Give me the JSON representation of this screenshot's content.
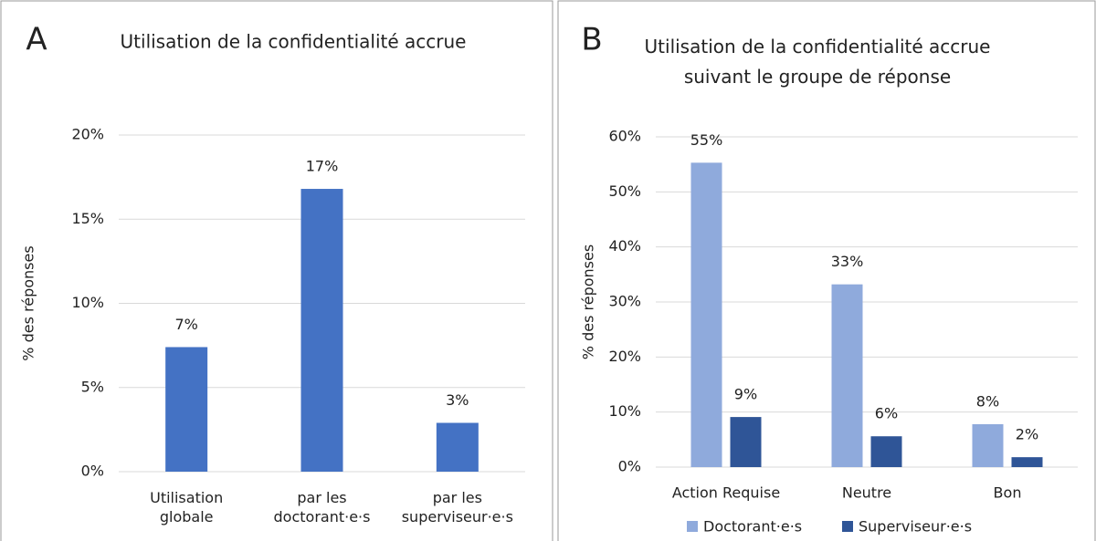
{
  "chart_data": [
    {
      "type": "bar",
      "panel": "A",
      "title": "Utilisation de la confidentialité accrue",
      "ylabel": "% des réponses",
      "categories": [
        "Utilisation globale",
        "par les doctorant·e·s",
        "par les superviseur·e·s"
      ],
      "values": [
        7.4,
        16.8,
        2.9
      ],
      "value_labels": [
        "7%",
        "17%",
        "3%"
      ],
      "color": "#4472c4",
      "ylim": [
        0,
        20
      ],
      "yticks": [
        {
          "value": 0,
          "label": "0%"
        },
        {
          "value": 5,
          "label": "5%"
        },
        {
          "value": 10,
          "label": "10%"
        },
        {
          "value": 15,
          "label": "15%"
        },
        {
          "value": 20,
          "label": "20%"
        }
      ],
      "grid": true
    },
    {
      "type": "grouped_bar",
      "panel": "B",
      "title": "Utilisation de la confidentialité accrue suivant le groupe de réponse",
      "ylabel": "% des réponses",
      "categories": [
        "Action Requise",
        "Neutre",
        "Bon"
      ],
      "series": [
        {
          "name": "Doctorant·e·s",
          "color": "#8faadc",
          "values": [
            55.3,
            33.2,
            7.8
          ],
          "value_labels": [
            "55%",
            "33%",
            "8%"
          ]
        },
        {
          "name": "Superviseur·e·s",
          "color": "#2f5597",
          "values": [
            9.1,
            5.6,
            1.8
          ],
          "value_labels": [
            "9%",
            "6%",
            "2%"
          ]
        }
      ],
      "ylim": [
        0,
        60
      ],
      "yticks": [
        {
          "value": 0,
          "label": "0%"
        },
        {
          "value": 10,
          "label": "10%"
        },
        {
          "value": 20,
          "label": "20%"
        },
        {
          "value": 30,
          "label": "30%"
        },
        {
          "value": 40,
          "label": "40%"
        },
        {
          "value": 50,
          "label": "50%"
        },
        {
          "value": 60,
          "label": "60%"
        }
      ],
      "grid": true,
      "legend": "bottom"
    }
  ]
}
